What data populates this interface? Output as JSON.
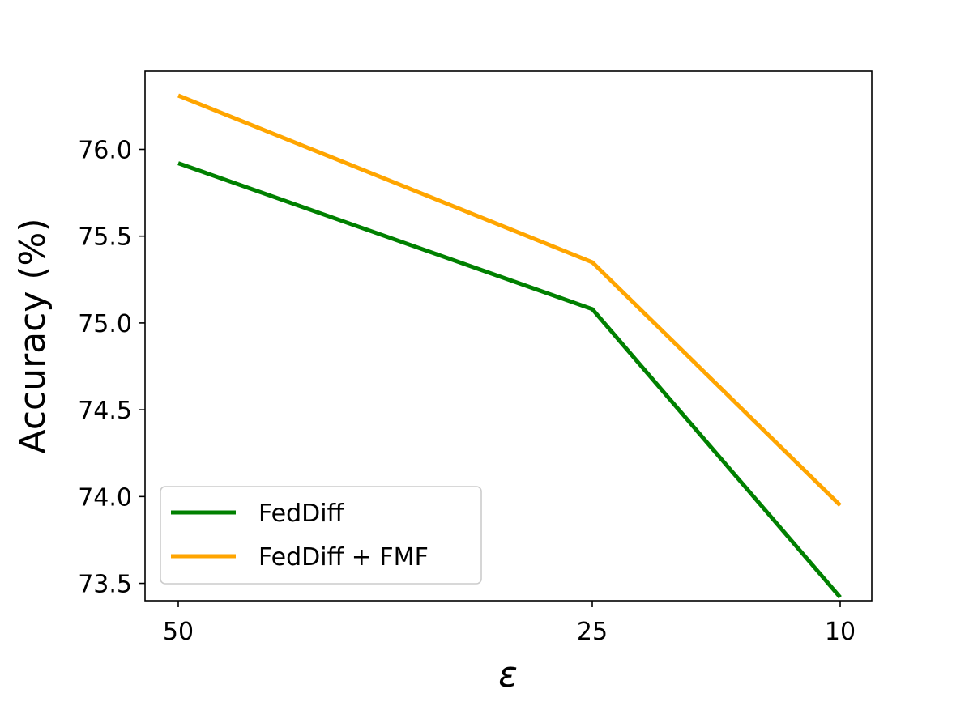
{
  "chart_data": {
    "type": "line",
    "xlabel": "ε",
    "ylabel": "Accuracy (%)",
    "categories": [
      "50",
      "25",
      "10"
    ],
    "x": [
      50,
      25,
      10
    ],
    "ylim": [
      73.4,
      76.45
    ],
    "yticks": [
      "73.5",
      "74.0",
      "74.5",
      "75.0",
      "75.5",
      "76.0"
    ],
    "grid": false,
    "legend_position": "bottom-left",
    "series": [
      {
        "name": "FedDiff",
        "color": "#008000",
        "values": [
          75.92,
          75.08,
          73.42
        ]
      },
      {
        "name": "FedDiff + FMF",
        "color": "#FFA500",
        "values": [
          76.31,
          75.35,
          73.95
        ]
      }
    ]
  }
}
